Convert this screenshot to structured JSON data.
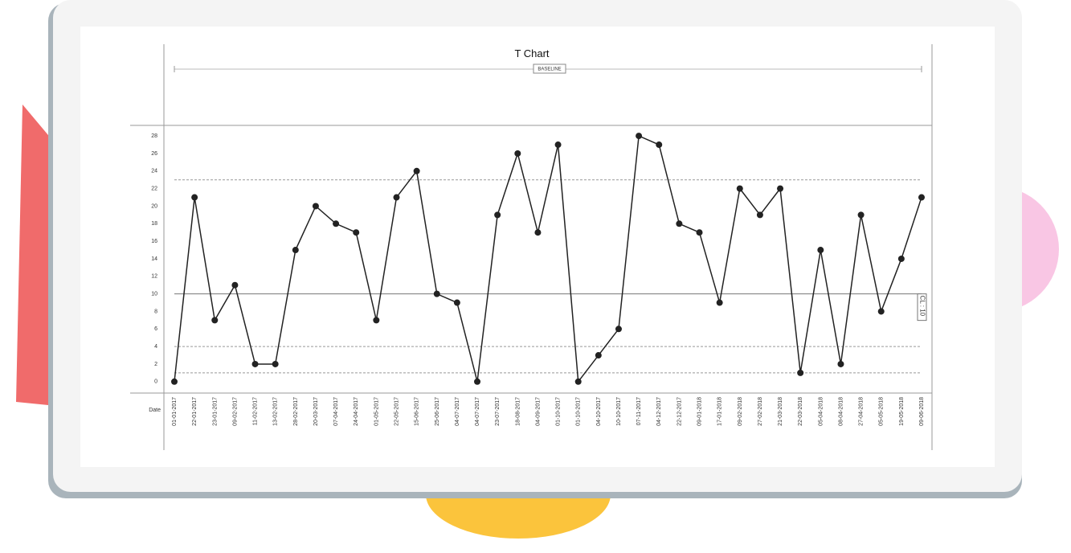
{
  "chart_data": {
    "type": "line",
    "title": "T Chart",
    "baseline_label": "BASELINE",
    "x_label": "Date",
    "categories": [
      "01-01-2017",
      "22-01-2017",
      "23-01-2017",
      "09-02-2017",
      "11-02-2017",
      "13-02-2017",
      "28-02-2017",
      "20-03-2017",
      "07-04-2017",
      "24-04-2017",
      "01-05-2017",
      "22-05-2017",
      "15-06-2017",
      "25-06-2017",
      "04-07-2017",
      "04-07-2017",
      "23-07-2017",
      "18-08-2017",
      "04-09-2017",
      "01-10-2017",
      "01-10-2017",
      "04-10-2017",
      "10-10-2017",
      "07-11-2017",
      "04-12-2017",
      "22-12-2017",
      "09-01-2018",
      "17-01-2018",
      "09-02-2018",
      "27-02-2018",
      "21-03-2018",
      "22-03-2018",
      "05-04-2018",
      "08-04-2018",
      "27-04-2018",
      "05-05-2018",
      "19-05-2018",
      "09-06-2018"
    ],
    "values": [
      0,
      21,
      7,
      11,
      2,
      2,
      15,
      20,
      18,
      17,
      7,
      21,
      24,
      10,
      9,
      0,
      19,
      26,
      17,
      27,
      0,
      3,
      6,
      28,
      27,
      18,
      17,
      9,
      22,
      19,
      22,
      1,
      15,
      2,
      19,
      8,
      14,
      21
    ],
    "color": "#222222",
    "ylim": [
      -1.3,
      29.2
    ],
    "yticks": [
      0,
      2,
      4,
      6,
      8,
      10,
      12,
      14,
      16,
      18,
      20,
      22,
      24,
      26,
      28
    ],
    "reference_lines": [
      {
        "value": 10,
        "label": "CL : 10",
        "style": "solid"
      },
      {
        "value": 23,
        "style": "dashed"
      },
      {
        "value": 4,
        "style": "dashed"
      },
      {
        "value": 1,
        "style": "dashed"
      }
    ]
  }
}
